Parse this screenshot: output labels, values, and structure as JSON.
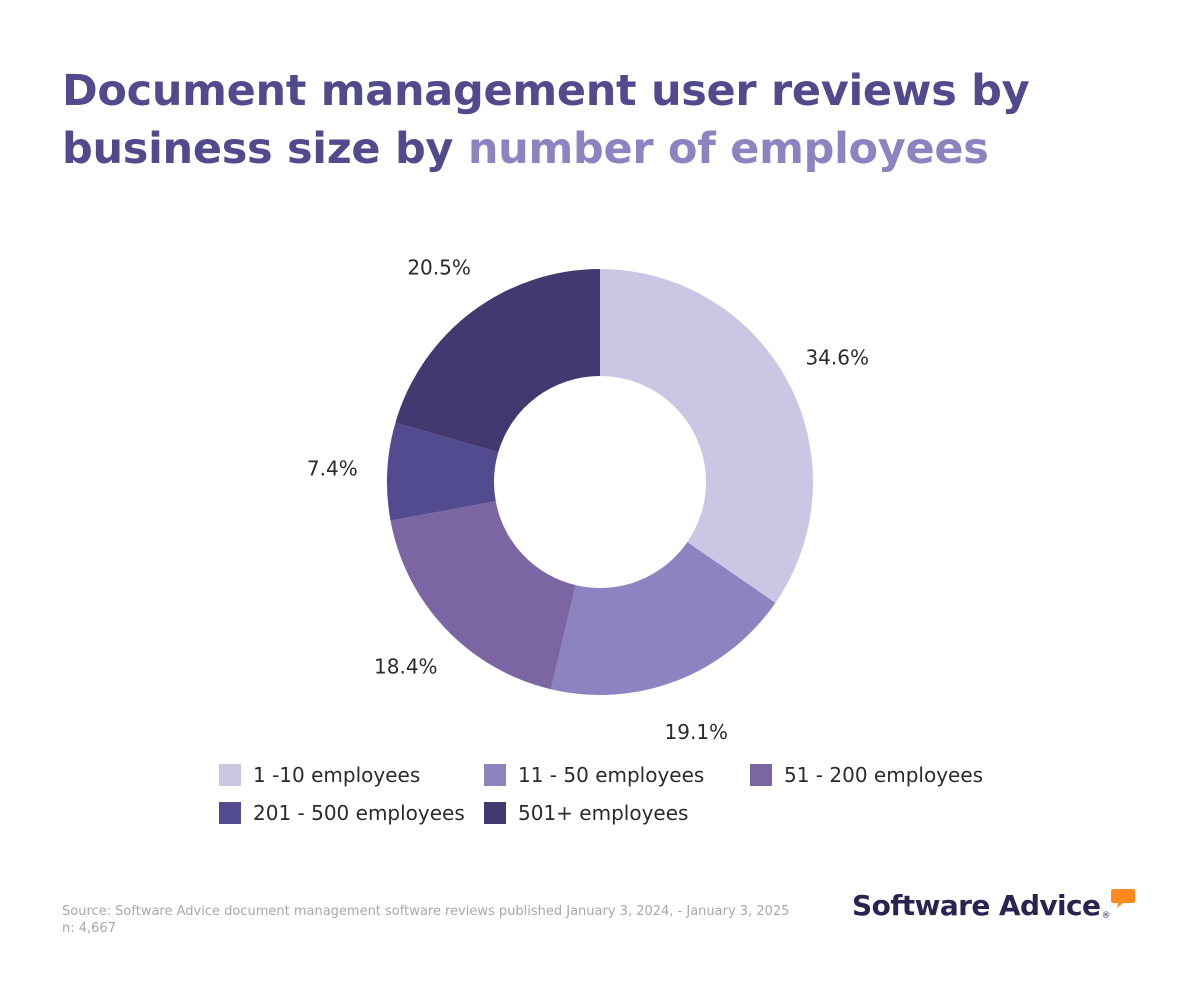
{
  "title": {
    "part1": "Document management user reviews by business size by ",
    "part2": "number of employees"
  },
  "chart_data": {
    "type": "pie",
    "style": "donut",
    "title": "Document management user reviews by business size by number of employees",
    "unit": "%",
    "slices": [
      {
        "label": "1 -10 employees",
        "value": 34.6,
        "value_label": "34.6%",
        "color": "#cac6e3"
      },
      {
        "label": "11 - 50 employees",
        "value": 19.1,
        "value_label": "19.1%",
        "color": "#8b84c1"
      },
      {
        "label": "51 - 200 employees",
        "value": 18.4,
        "value_label": "18.4%",
        "color": "#7b66a3"
      },
      {
        "label": "201 - 500 employees",
        "value": 7.4,
        "value_label": "7.4%",
        "color": "#524b8f"
      },
      {
        "label": "501+ employees",
        "value": 20.5,
        "value_label": "20.5%",
        "color": "#43386f"
      }
    ],
    "legend_position": "bottom"
  },
  "footer": {
    "source": "Source: Software Advice document management software reviews published January 3, 2024, - January 3, 2025",
    "n": "n: 4,667"
  },
  "logo": {
    "text": "Software Advice",
    "reg": "®",
    "accent_color": "#ff8a1f"
  }
}
